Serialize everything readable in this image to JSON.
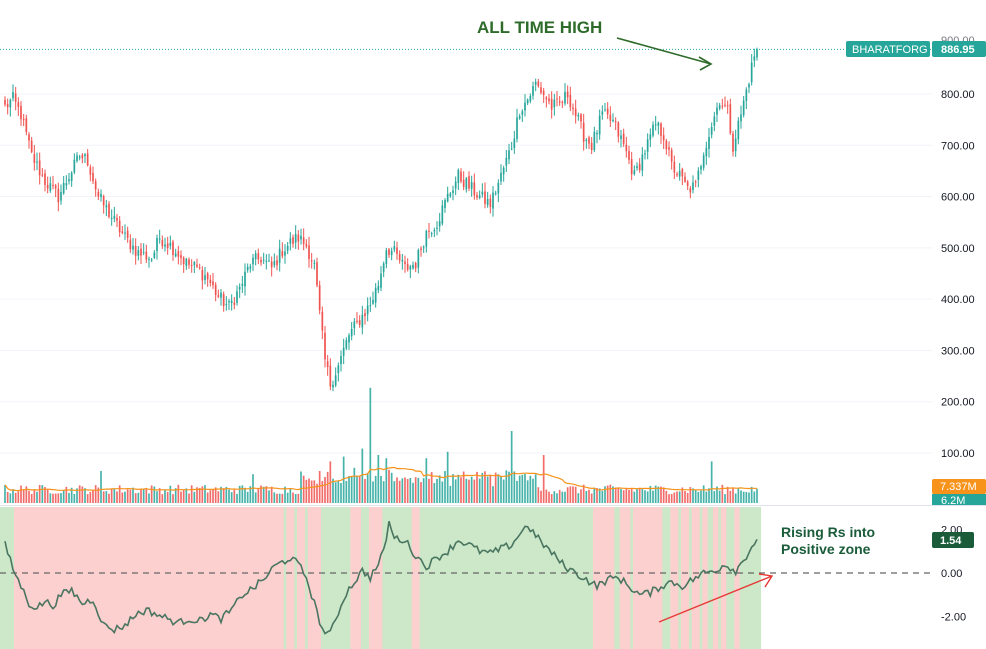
{
  "colors": {
    "up": "#26a69a",
    "down": "#ef5350",
    "volume_up": "#26a69a",
    "volume_down": "#ef5350",
    "volume_ma": "#f7931a",
    "rs_line": "#4a7560",
    "positive_bg": "#cce8c8",
    "negative_bg": "#fdd0d0",
    "ticker_badge": "#26a69a",
    "vol_badge": "#f7931a",
    "rs_badge": "#1a5c3a",
    "annotation_green": "#2e6b2a",
    "annotation_red": "#e53935"
  },
  "annotations": {
    "all_time_high": "ALL TIME HIGH",
    "rising_rs_line1": "Rising Rs into",
    "rising_rs_line2": "Positive zone"
  },
  "badges": {
    "ticker": "BHARATFORG",
    "price": "886.95",
    "price_ghost": "900.00",
    "volume_ma": "7.337M",
    "volume": "6.2M",
    "rs_value": "1.54"
  },
  "chart_data": [
    {
      "type": "line",
      "name": "price-candles",
      "y_ticks": [
        "800.00",
        "700.00",
        "600.00",
        "500.00",
        "400.00",
        "300.00",
        "200.00",
        "100.00"
      ],
      "y_tick_values": [
        800,
        700,
        600,
        500,
        400,
        300,
        200,
        100
      ],
      "ylim": [
        60,
        915
      ],
      "last_price": 886.95,
      "close_keypoints": [
        [
          0,
          775
        ],
        [
          3,
          790
        ],
        [
          6,
          760
        ],
        [
          10,
          680
        ],
        [
          15,
          630
        ],
        [
          20,
          600
        ],
        [
          24,
          640
        ],
        [
          28,
          680
        ],
        [
          31,
          670
        ],
        [
          35,
          600
        ],
        [
          40,
          560
        ],
        [
          45,
          520
        ],
        [
          50,
          490
        ],
        [
          55,
          480
        ],
        [
          58,
          520
        ],
        [
          61,
          510
        ],
        [
          64,
          495
        ],
        [
          68,
          470
        ],
        [
          72,
          460
        ],
        [
          76,
          440
        ],
        [
          80,
          405
        ],
        [
          84,
          385
        ],
        [
          88,
          420
        ],
        [
          92,
          470
        ],
        [
          96,
          480
        ],
        [
          100,
          460
        ],
        [
          104,
          495
        ],
        [
          107,
          510
        ],
        [
          110,
          520
        ],
        [
          113,
          505
        ],
        [
          116,
          465
        ],
        [
          118,
          370
        ],
        [
          120,
          280
        ],
        [
          122,
          235
        ],
        [
          125,
          270
        ],
        [
          129,
          330
        ],
        [
          133,
          360
        ],
        [
          137,
          390
        ],
        [
          140,
          430
        ],
        [
          143,
          500
        ],
        [
          146,
          490
        ],
        [
          150,
          460
        ],
        [
          154,
          470
        ],
        [
          158,
          530
        ],
        [
          162,
          550
        ],
        [
          166,
          600
        ],
        [
          170,
          640
        ],
        [
          174,
          620
        ],
        [
          178,
          600
        ],
        [
          182,
          585
        ],
        [
          186,
          640
        ],
        [
          190,
          700
        ],
        [
          193,
          770
        ],
        [
          196,
          790
        ],
        [
          199,
          820
        ],
        [
          202,
          800
        ],
        [
          205,
          775
        ],
        [
          208,
          780
        ],
        [
          211,
          800
        ],
        [
          214,
          760
        ],
        [
          217,
          720
        ],
        [
          220,
          700
        ],
        [
          224,
          760
        ],
        [
          228,
          745
        ],
        [
          232,
          700
        ],
        [
          236,
          640
        ],
        [
          240,
          690
        ],
        [
          244,
          740
        ],
        [
          247,
          720
        ],
        [
          250,
          660
        ],
        [
          253,
          640
        ],
        [
          256,
          615
        ],
        [
          259,
          620
        ],
        [
          262,
          690
        ],
        [
          265,
          740
        ],
        [
          268,
          790
        ],
        [
          271,
          765
        ],
        [
          273,
          700
        ],
        [
          276,
          760
        ],
        [
          279,
          830
        ],
        [
          281,
          875
        ],
        [
          282,
          886.95
        ]
      ]
    },
    {
      "type": "bar",
      "name": "volume",
      "ma_last": "7.337M",
      "last_volume": "6.2M",
      "spikes": [
        [
          36,
          2.0
        ],
        [
          93,
          1.8
        ],
        [
          118,
          2.0
        ],
        [
          122,
          2.6
        ],
        [
          127,
          2.9
        ],
        [
          131,
          2.2
        ],
        [
          134,
          3.4
        ],
        [
          137,
          7.2
        ],
        [
          140,
          3.0
        ],
        [
          143,
          2.8
        ],
        [
          158,
          2.8
        ],
        [
          166,
          3.2
        ],
        [
          190,
          4.5
        ],
        [
          202,
          3.0
        ],
        [
          265,
          2.6
        ]
      ]
    },
    {
      "type": "line",
      "name": "relative-strength",
      "y_ticks": [
        "2.00",
        "0.00",
        "-2.00"
      ],
      "y_tick_values": [
        2,
        0,
        -2
      ],
      "ylim": [
        -3.1,
        3.0
      ],
      "last_value": 1.54,
      "keypoints": [
        [
          0,
          1.3
        ],
        [
          3,
          0.2
        ],
        [
          6,
          -0.6
        ],
        [
          9,
          -1.4
        ],
        [
          12,
          -1.6
        ],
        [
          15,
          -1.3
        ],
        [
          18,
          -1.5
        ],
        [
          21,
          -1.0
        ],
        [
          25,
          -0.8
        ],
        [
          29,
          -1.4
        ],
        [
          33,
          -1.2
        ],
        [
          37,
          -2.4
        ],
        [
          41,
          -2.6
        ],
        [
          45,
          -2.4
        ],
        [
          49,
          -1.9
        ],
        [
          53,
          -1.7
        ],
        [
          57,
          -1.9
        ],
        [
          61,
          -2.1
        ],
        [
          65,
          -2.3
        ],
        [
          69,
          -2.1
        ],
        [
          73,
          -2.2
        ],
        [
          77,
          -1.9
        ],
        [
          81,
          -2.1
        ],
        [
          85,
          -1.7
        ],
        [
          89,
          -1.0
        ],
        [
          93,
          -0.7
        ],
        [
          97,
          -0.3
        ],
        [
          101,
          0.3
        ],
        [
          104,
          0.5
        ],
        [
          107,
          0.7
        ],
        [
          110,
          0.4
        ],
        [
          113,
          -0.2
        ],
        [
          116,
          -1.4
        ],
        [
          119,
          -2.6
        ],
        [
          122,
          -2.8
        ],
        [
          125,
          -1.8
        ],
        [
          128,
          -0.9
        ],
        [
          131,
          -0.4
        ],
        [
          134,
          0.1
        ],
        [
          137,
          -0.2
        ],
        [
          140,
          0.4
        ],
        [
          142,
          1.0
        ],
        [
          144,
          2.3
        ],
        [
          146,
          1.6
        ],
        [
          150,
          1.5
        ],
        [
          154,
          0.8
        ],
        [
          158,
          0.3
        ],
        [
          162,
          0.7
        ],
        [
          166,
          1.0
        ],
        [
          170,
          1.5
        ],
        [
          174,
          1.3
        ],
        [
          178,
          1.0
        ],
        [
          182,
          0.9
        ],
        [
          186,
          1.1
        ],
        [
          190,
          1.3
        ],
        [
          193,
          1.8
        ],
        [
          196,
          2.2
        ],
        [
          199,
          1.7
        ],
        [
          202,
          1.3
        ],
        [
          206,
          0.8
        ],
        [
          210,
          0.3
        ],
        [
          214,
          0.0
        ],
        [
          218,
          -0.3
        ],
        [
          222,
          -0.6
        ],
        [
          226,
          -0.3
        ],
        [
          230,
          -0.2
        ],
        [
          234,
          -0.6
        ],
        [
          238,
          -1.0
        ],
        [
          242,
          -0.9
        ],
        [
          246,
          -0.6
        ],
        [
          250,
          -0.4
        ],
        [
          254,
          -0.6
        ],
        [
          258,
          -0.3
        ],
        [
          262,
          0.0
        ],
        [
          266,
          0.1
        ],
        [
          270,
          0.4
        ],
        [
          274,
          0.1
        ],
        [
          277,
          0.6
        ],
        [
          280,
          1.2
        ],
        [
          282,
          1.54
        ]
      ],
      "negative_zone_ranges": [
        [
          5,
          104
        ],
        [
          106,
          108
        ],
        [
          110,
          112
        ],
        [
          114,
          118
        ],
        [
          130,
          133
        ],
        [
          137,
          141
        ],
        [
          153,
          155
        ],
        [
          221,
          228
        ],
        [
          231,
          234
        ],
        [
          236,
          246
        ],
        [
          250,
          252
        ],
        [
          254,
          256
        ],
        [
          258,
          260
        ],
        [
          262,
          263
        ],
        [
          266,
          267
        ],
        [
          269,
          270
        ],
        [
          274,
          275
        ]
      ]
    }
  ]
}
